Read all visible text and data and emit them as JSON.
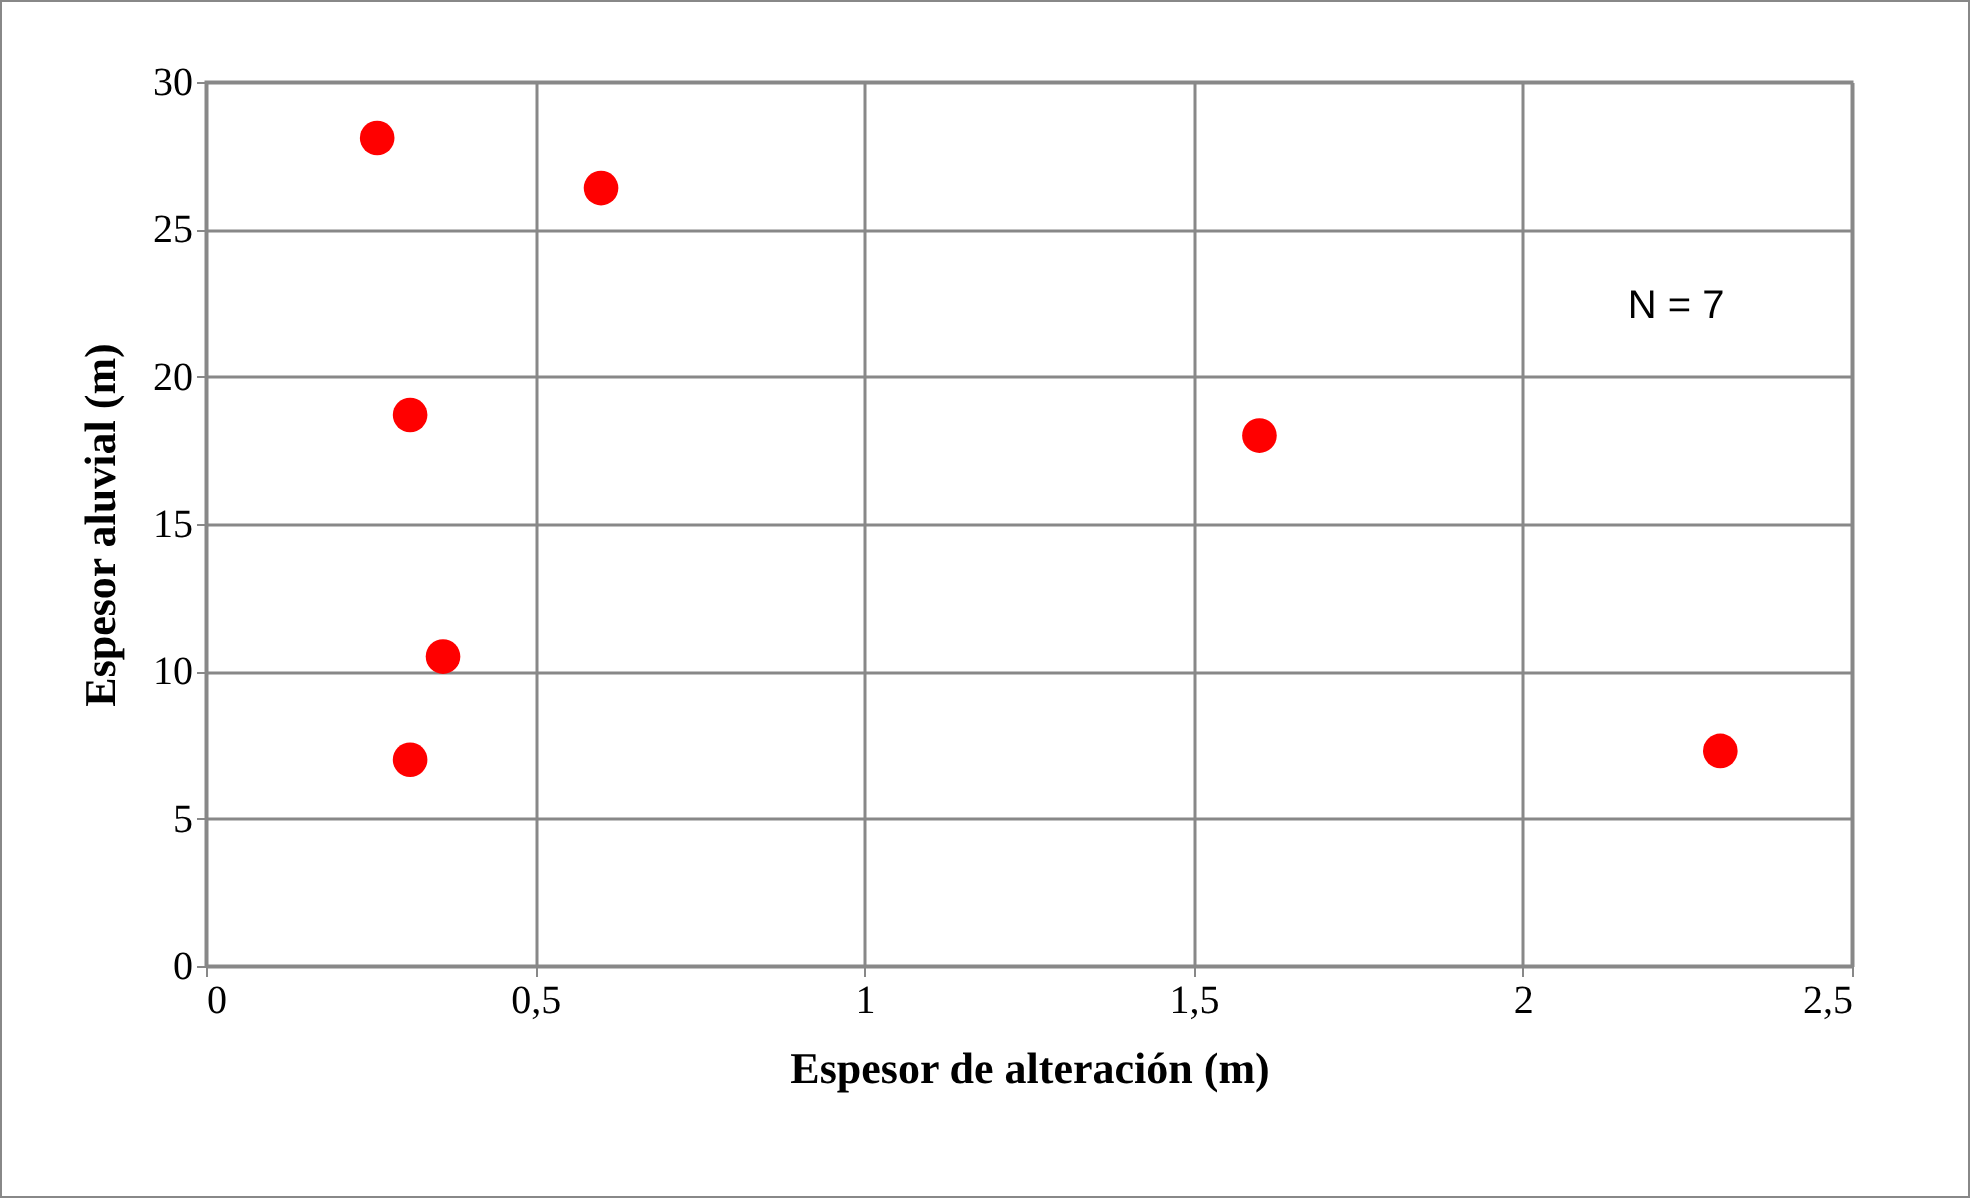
{
  "chart_data": {
    "type": "scatter",
    "xlabel": "Espesor de alteración (m)",
    "ylabel": "Espesor aluvial (m)",
    "x": [
      0.26,
      0.6,
      0.31,
      1.6,
      0.36,
      0.31,
      2.3
    ],
    "series": [
      {
        "color": "#ff0000",
        "values": [
          28.1,
          26.4,
          18.7,
          18,
          10.5,
          7,
          7.3
        ]
      }
    ],
    "xlim": [
      0,
      2.5
    ],
    "xticks": [
      0,
      {
        "value": 0.5,
        "label": "0,5"
      },
      1,
      {
        "value": 1.5,
        "label": "1,5"
      },
      2,
      {
        "value": 2.5,
        "label": "2,5"
      }
    ],
    "ylim": [
      0,
      30
    ],
    "yticks": [
      0,
      5,
      10,
      15,
      20,
      25,
      30
    ],
    "grid": true,
    "marker": "circle",
    "annotations": [
      "N = 7"
    ]
  }
}
